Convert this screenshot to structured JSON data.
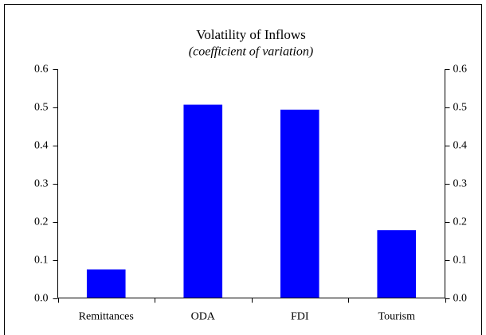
{
  "chart_data": {
    "type": "bar",
    "title": "Volatility of Inflows",
    "subtitle": "(coefficient of variation)",
    "categories": [
      "Remittances",
      "ODA",
      "FDI",
      "Tourism"
    ],
    "values": [
      0.075,
      0.507,
      0.494,
      0.178
    ],
    "color": "#0000ff",
    "ylim": [
      0,
      0.6
    ],
    "yticks": [
      {
        "value": 0,
        "label": "0.0"
      },
      0.1,
      0.2,
      0.3,
      0.4,
      0.5,
      0.6
    ],
    "y2lim": [
      0,
      0.6
    ],
    "y2ticks": [
      {
        "value": 0,
        "label": "0.0"
      },
      0.1,
      0.2,
      0.3,
      0.4,
      0.5,
      0.6
    ],
    "grid": false
  }
}
